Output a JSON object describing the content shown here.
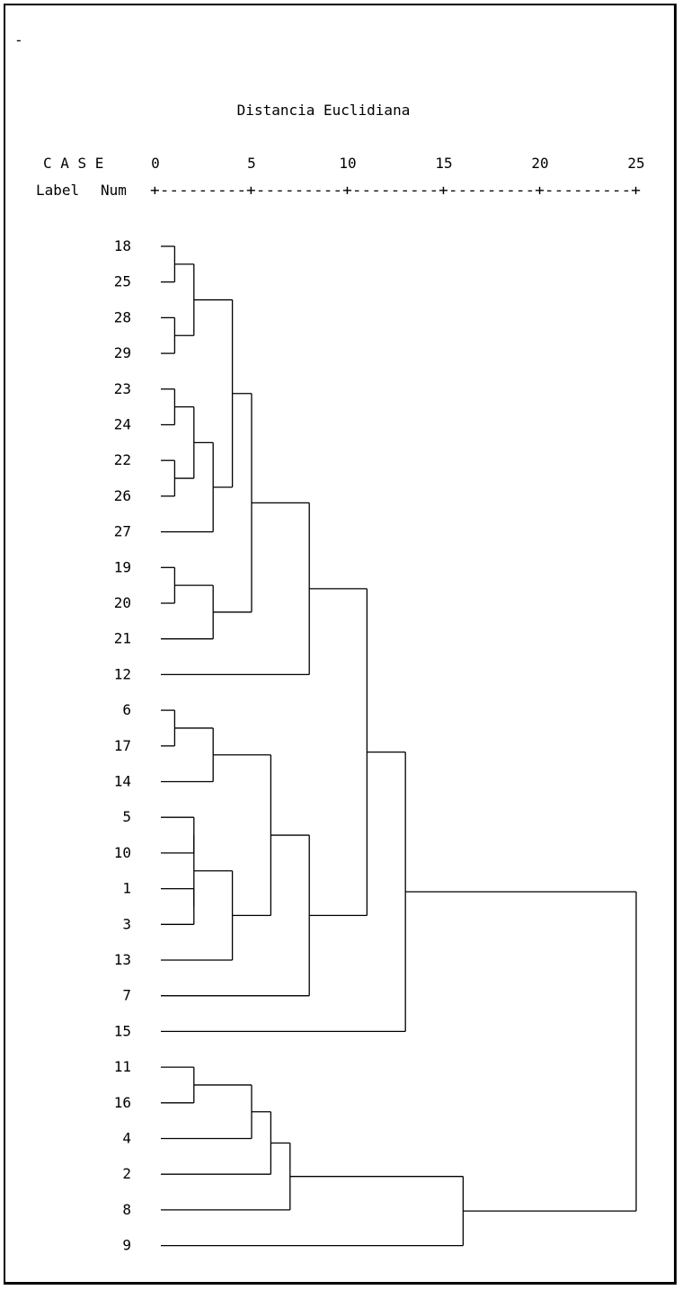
{
  "cursor_mark": "-",
  "chart_data": {
    "type": "dendrogram",
    "title": "Distancia Euclidiana",
    "header": {
      "case": "C A S E",
      "label": "Label",
      "num": "Num"
    },
    "axis": {
      "ticks": [
        0,
        5,
        10,
        15,
        20,
        25
      ],
      "tick_labels": [
        "0",
        "5",
        "10",
        "15",
        "20",
        "25"
      ],
      "range": [
        0,
        25
      ],
      "rule": "+---------+---------+---------+---------+---------+"
    },
    "leaves": [
      "18",
      "25",
      "28",
      "29",
      "23",
      "24",
      "22",
      "26",
      "27",
      "19",
      "20",
      "21",
      "12",
      "6",
      "17",
      "14",
      "5",
      "10",
      "1",
      "3",
      "13",
      "7",
      "15",
      "11",
      "16",
      "4",
      "2",
      "8",
      "9"
    ],
    "merges": [
      {
        "a": "18",
        "b": "25",
        "distance": 1.0
      },
      {
        "a": "28",
        "b": "29",
        "distance": 1.0
      },
      {
        "a": "23",
        "b": "24",
        "distance": 1.0
      },
      {
        "a": "22",
        "b": "26",
        "distance": 1.0
      },
      {
        "a": "19",
        "b": "20",
        "distance": 1.0
      },
      {
        "a": "6",
        "b": "17",
        "distance": 1.0
      },
      {
        "a": "5",
        "b": "10",
        "distance": 2.0
      },
      {
        "a": "1",
        "b": "3",
        "distance": 2.0
      },
      {
        "a": "11",
        "b": "16",
        "distance": 2.0
      },
      {
        "a": "18-25",
        "b": "28-29",
        "distance": 2.0
      },
      {
        "a": "23-24",
        "b": "22-26",
        "distance": 2.0
      },
      {
        "a": "5-10",
        "b": "1-3",
        "distance": 2.0
      },
      {
        "a": "23-24-22-26",
        "b": "27",
        "distance": 3.0
      },
      {
        "a": "19-20",
        "b": "21",
        "distance": 3.0
      },
      {
        "a": "6-17",
        "b": "14",
        "distance": 3.0
      },
      {
        "a": "5-10-1-3",
        "b": "13",
        "distance": 4.0
      },
      {
        "a": "18-25-28-29",
        "b": "23-24-22-26-27",
        "distance": 4.0
      },
      {
        "a": "11-16",
        "b": "4",
        "distance": 5.0
      },
      {
        "a": "18..27",
        "b": "19-20-21",
        "distance": 5.0
      },
      {
        "a": "6-17-14",
        "b": "5-10-1-3-13",
        "distance": 6.0
      },
      {
        "a": "11-16-4",
        "b": "2",
        "distance": 6.0
      },
      {
        "a": "11-16-4-2",
        "b": "8",
        "distance": 7.0
      },
      {
        "a": "18..21",
        "b": "12",
        "distance": 8.0
      },
      {
        "a": "6..13",
        "b": "7",
        "distance": 8.0
      },
      {
        "a": "18..12",
        "b": "6..7",
        "distance": 11.0
      },
      {
        "a": "18..7",
        "b": "15",
        "distance": 13.0
      },
      {
        "a": "11..8",
        "b": "9",
        "distance": 16.0
      },
      {
        "a": "18..15",
        "b": "11..9",
        "distance": 25.0
      }
    ]
  }
}
